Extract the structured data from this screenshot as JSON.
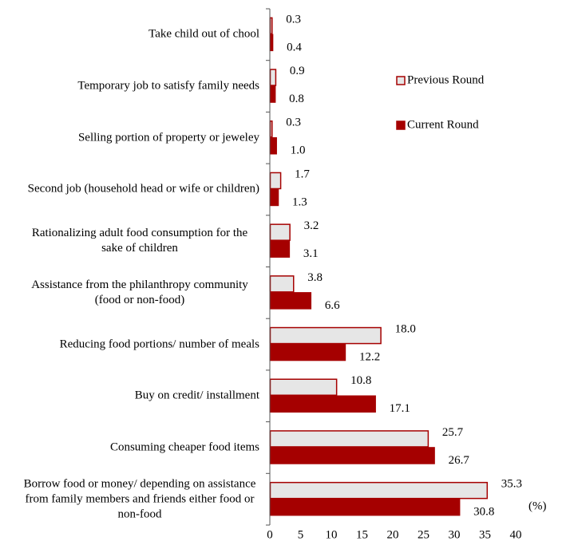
{
  "chart_data": {
    "type": "hbar",
    "categories": [
      "Take child out of chool",
      "Temporary job to satisfy family needs",
      "Selling portion of property or jeweley",
      "Second job (household head or wife or children)",
      "Rationalizing adult food consumption for the sake of children",
      "Assistance from the philanthropy community (food or non-food)",
      "Reducing food portions/ number of meals",
      "Buy on credit/ installment",
      "Consuming cheaper food items",
      "Borrow food or money/ depending on assistance from family members and friends either food or non-food"
    ],
    "series": [
      {
        "name": "Previous Round",
        "color": "#e6e6e6",
        "edge_color": "#a50000",
        "values": [
          0.3,
          0.9,
          0.3,
          1.7,
          3.2,
          3.8,
          18.0,
          10.8,
          25.7,
          35.3
        ],
        "value_labels": [
          "0.3",
          "0.9",
          "0.3",
          "1.7",
          "3.2",
          "3.8",
          "18.0",
          "10.8",
          "25.7",
          "35.3"
        ]
      },
      {
        "name": "Current Round",
        "color": "#a50000",
        "edge_color": "#a50000",
        "values": [
          0.4,
          0.8,
          1.0,
          1.3,
          3.1,
          6.6,
          12.2,
          17.1,
          26.7,
          30.8
        ],
        "value_labels": [
          "0.4",
          "0.8",
          "1.0",
          "1.3",
          "3.1",
          "6.6",
          "12.2",
          "17.1",
          "26.7",
          "30.8"
        ]
      }
    ],
    "xlim": [
      0,
      40
    ],
    "xticks": [
      0,
      5,
      10,
      15,
      20,
      25,
      30,
      35,
      40
    ],
    "x_unit_label": "(%)",
    "legend": "right"
  }
}
